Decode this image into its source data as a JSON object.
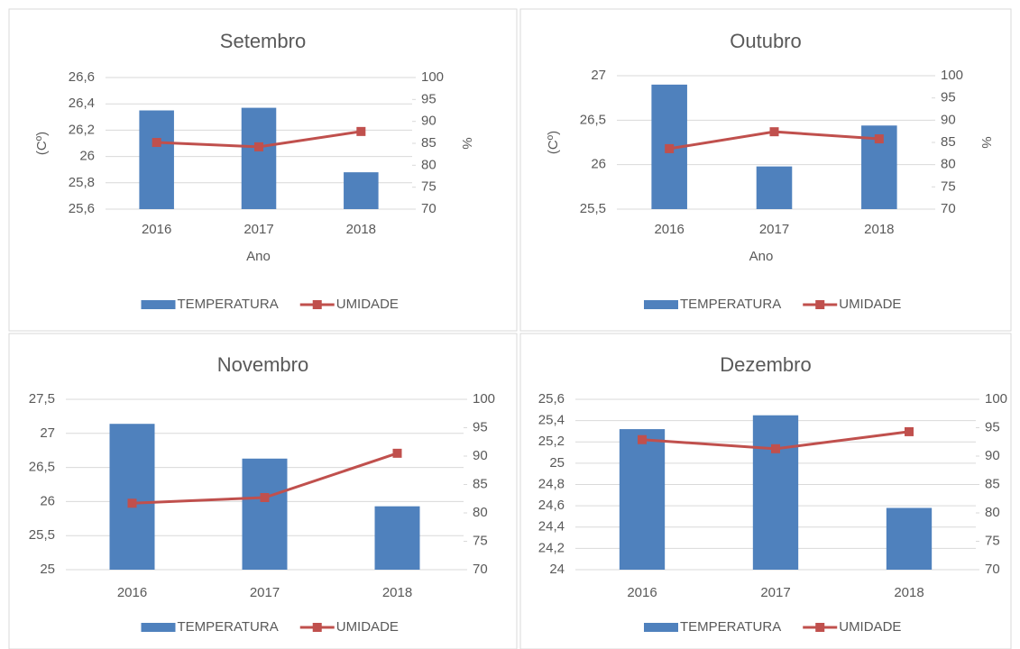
{
  "chart_data": [
    {
      "type": "combo",
      "title": "Setembro",
      "xlabel": "Ano",
      "ylabel": "(Cº)",
      "y2label": "%",
      "categories": [
        "2016",
        "2017",
        "2018"
      ],
      "series": [
        {
          "name": "TEMPERATURA",
          "type": "bar",
          "color": "#4f81bd",
          "values": [
            26.35,
            26.37,
            25.88
          ]
        },
        {
          "name": "UMIDADE",
          "type": "line",
          "axis": "y2",
          "color": "#c0504d",
          "values": [
            85.2,
            84.2,
            87.7
          ]
        }
      ],
      "ylim": [
        25.6,
        26.6
      ],
      "yticks": [
        {
          "value": 25.6,
          "label": "25,6"
        },
        {
          "value": 25.8,
          "label": "25,8"
        },
        26,
        {
          "value": 26.2,
          "label": "26,2"
        },
        {
          "value": 26.4,
          "label": "26,4"
        },
        {
          "value": 26.6,
          "label": "26,6"
        }
      ],
      "y2lim": [
        70,
        100
      ],
      "y2ticks": [
        70,
        75,
        80,
        85,
        90,
        95,
        100
      ],
      "grid": true,
      "legend": "bottom"
    },
    {
      "type": "combo",
      "title": "Outubro",
      "xlabel": "Ano",
      "ylabel": "(Cº)",
      "y2label": "%",
      "categories": [
        "2016",
        "2017",
        "2018"
      ],
      "series": [
        {
          "name": "TEMPERATURA",
          "type": "bar",
          "color": "#4f81bd",
          "values": [
            26.9,
            25.98,
            26.44
          ]
        },
        {
          "name": "UMIDADE",
          "type": "line",
          "axis": "y2",
          "color": "#c0504d",
          "values": [
            83.6,
            87.4,
            85.8
          ]
        }
      ],
      "ylim": [
        25.5,
        27
      ],
      "yticks": [
        {
          "value": 25.5,
          "label": "25,5"
        },
        26,
        {
          "value": 26.5,
          "label": "26,5"
        },
        27
      ],
      "y2lim": [
        70,
        100
      ],
      "y2ticks": [
        70,
        75,
        80,
        85,
        90,
        95,
        100
      ],
      "grid": true,
      "legend": "bottom"
    },
    {
      "type": "combo",
      "title": "Novembro",
      "categories": [
        "2016",
        "2017",
        "2018"
      ],
      "series": [
        {
          "name": "TEMPERATURA",
          "type": "bar",
          "color": "#4f81bd",
          "values": [
            27.14,
            26.63,
            25.93
          ]
        },
        {
          "name": "UMIDADE",
          "type": "line",
          "axis": "y2",
          "color": "#c0504d",
          "values": [
            81.7,
            82.7,
            90.5
          ]
        }
      ],
      "ylim": [
        25,
        27.5
      ],
      "yticks": [
        25,
        {
          "value": 25.5,
          "label": "25,5"
        },
        26,
        {
          "value": 26.5,
          "label": "26,5"
        },
        27,
        {
          "value": 27.5,
          "label": "27,5"
        }
      ],
      "y2lim": [
        70,
        100
      ],
      "y2ticks": [
        70,
        75,
        80,
        85,
        90,
        95,
        100
      ],
      "grid": true,
      "legend": "bottom"
    },
    {
      "type": "combo",
      "title": "Dezembro",
      "categories": [
        "2016",
        "2017",
        "2018"
      ],
      "series": [
        {
          "name": "TEMPERATURA",
          "type": "bar",
          "color": "#4f81bd",
          "values": [
            25.32,
            25.45,
            24.58
          ]
        },
        {
          "name": "UMIDADE",
          "type": "line",
          "axis": "y2",
          "color": "#c0504d",
          "values": [
            92.9,
            91.3,
            94.3
          ]
        }
      ],
      "ylim": [
        24,
        25.6
      ],
      "yticks": [
        24,
        {
          "value": 24.2,
          "label": "24,2"
        },
        {
          "value": 24.4,
          "label": "24,4"
        },
        {
          "value": 24.6,
          "label": "24,6"
        },
        {
          "value": 24.8,
          "label": "24,8"
        },
        25,
        {
          "value": 25.2,
          "label": "25,2"
        },
        {
          "value": 25.4,
          "label": "25,4"
        },
        {
          "value": 25.6,
          "label": "25,6"
        }
      ],
      "y2lim": [
        70,
        100
      ],
      "y2ticks": [
        70,
        75,
        80,
        85,
        90,
        95,
        100
      ],
      "grid": true,
      "legend": "bottom"
    }
  ]
}
